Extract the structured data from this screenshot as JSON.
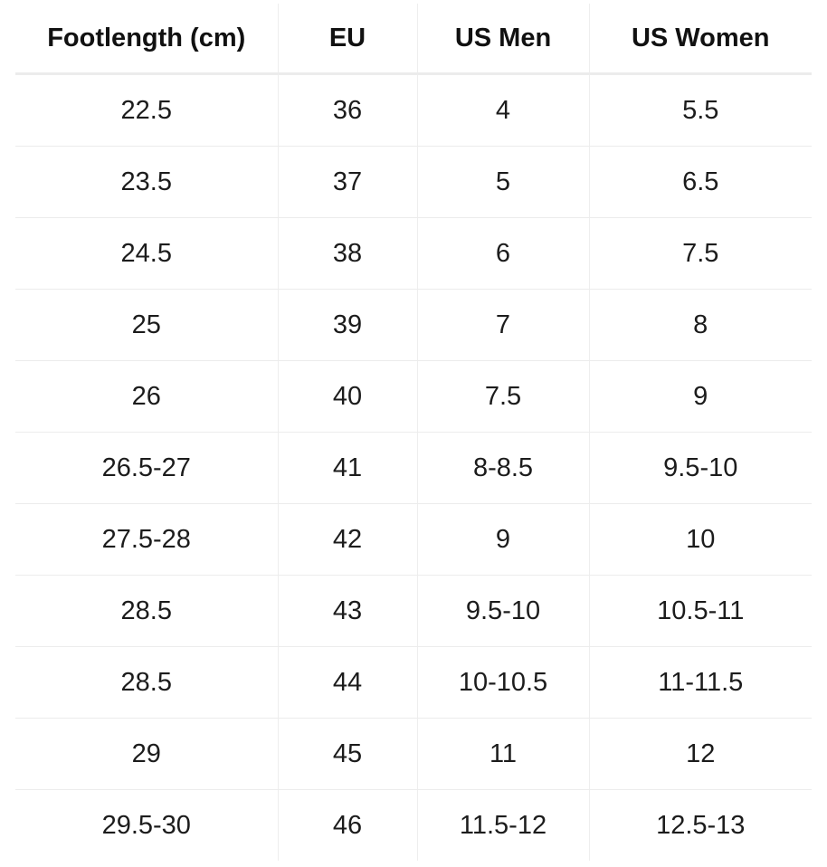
{
  "table": {
    "headers": [
      "Footlength (cm)",
      "EU",
      "US Men",
      "US Women"
    ],
    "rows": [
      [
        "22.5",
        "36",
        "4",
        "5.5"
      ],
      [
        "23.5",
        "37",
        "5",
        "6.5"
      ],
      [
        "24.5",
        "38",
        "6",
        "7.5"
      ],
      [
        "25",
        "39",
        "7",
        "8"
      ],
      [
        "26",
        "40",
        "7.5",
        "9"
      ],
      [
        "26.5-27",
        "41",
        "8-8.5",
        "9.5-10"
      ],
      [
        "27.5-28",
        "42",
        "9",
        "10"
      ],
      [
        "28.5",
        "43",
        "9.5-10",
        "10.5-11"
      ],
      [
        "28.5",
        "44",
        "10-10.5",
        "11-11.5"
      ],
      [
        "29",
        "45",
        "11",
        "12"
      ],
      [
        "29.5-30",
        "46",
        "11.5-12",
        "12.5-13"
      ]
    ]
  }
}
